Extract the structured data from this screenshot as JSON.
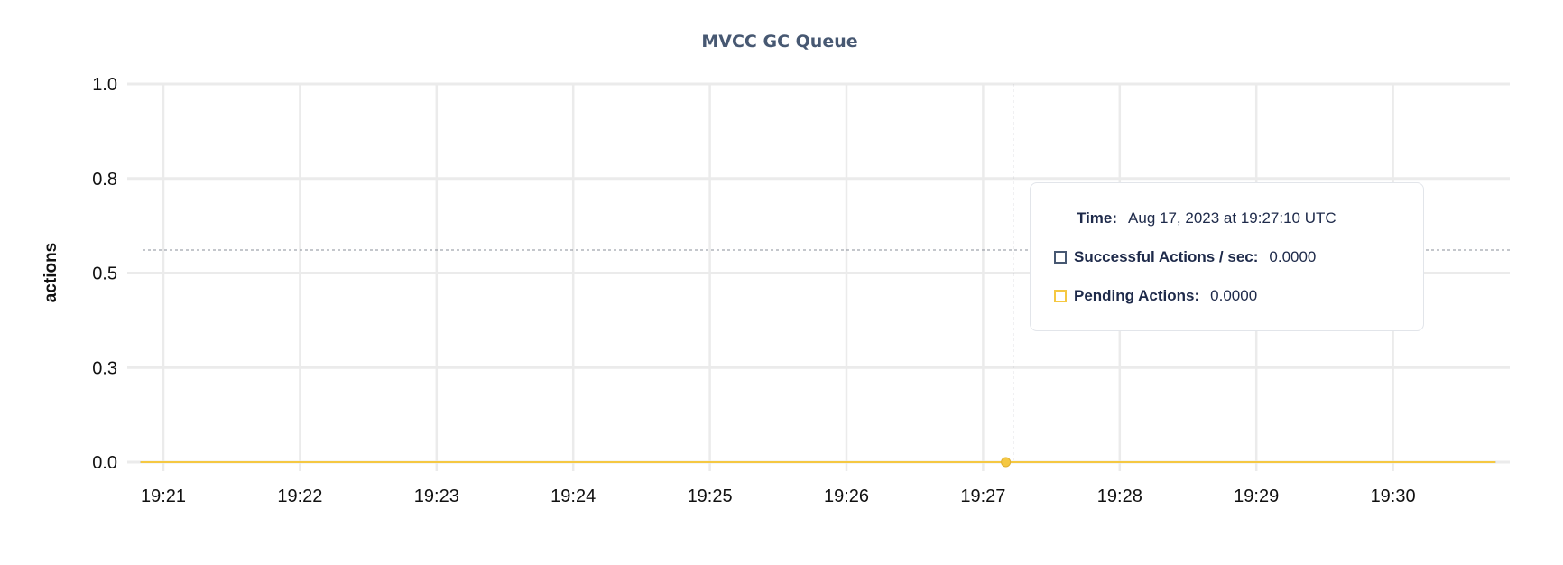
{
  "chart_data": {
    "type": "line",
    "title": "MVCC GC Queue",
    "ylabel": "actions",
    "xlabel": "",
    "x_ticks": [
      "19:21",
      "19:22",
      "19:23",
      "19:24",
      "19:25",
      "19:26",
      "19:27",
      "19:28",
      "19:29",
      "19:30"
    ],
    "y_ticks": [
      "1.0",
      "0.8",
      "0.5",
      "0.3",
      "0.0"
    ],
    "ylim": [
      0,
      1
    ],
    "grid": true,
    "x_range": [
      "19:20:50",
      "19:30:45"
    ],
    "series": [
      {
        "name": "Successful Actions / sec",
        "color": "#475872",
        "x": [
          "19:20:50",
          "19:30:45"
        ],
        "y": [
          0,
          0
        ]
      },
      {
        "name": "Pending Actions",
        "color": "#f5c842",
        "x": [
          "19:20:50",
          "19:30:45"
        ],
        "y": [
          0,
          0
        ]
      }
    ],
    "hover": {
      "x": "19:27:10",
      "y": 0
    }
  },
  "tooltip": {
    "time_label": "Time:",
    "time_value": "Aug 17, 2023 at 19:27:10 UTC",
    "rows": [
      {
        "label": "Successful Actions / sec:",
        "value": "0.0000",
        "color": "#475872"
      },
      {
        "label": "Pending Actions:",
        "value": "0.0000",
        "color": "#f5c842"
      }
    ]
  }
}
